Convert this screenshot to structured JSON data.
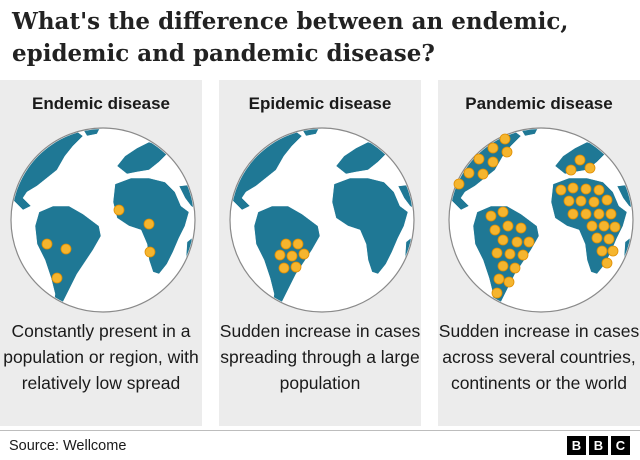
{
  "title": "What's the difference between an endemic, epidemic and pandemic disease?",
  "panels": [
    {
      "heading": "Endemic disease",
      "description": "Constantly present in a population or region, with relatively low spread"
    },
    {
      "heading": "Epidemic disease",
      "description": "Sudden increase in cases spreading through a large population"
    },
    {
      "heading": "Pandemic disease",
      "description": "Sudden increase in cases across several countries, continents or the world"
    }
  ],
  "source": "Source: Wellcome",
  "logo_letters": [
    "B",
    "B",
    "C"
  ],
  "colors": {
    "ocean": "#ffffff",
    "land": "#1f7895",
    "dot": "#f5b52e",
    "panel_bg": "#ececec"
  }
}
